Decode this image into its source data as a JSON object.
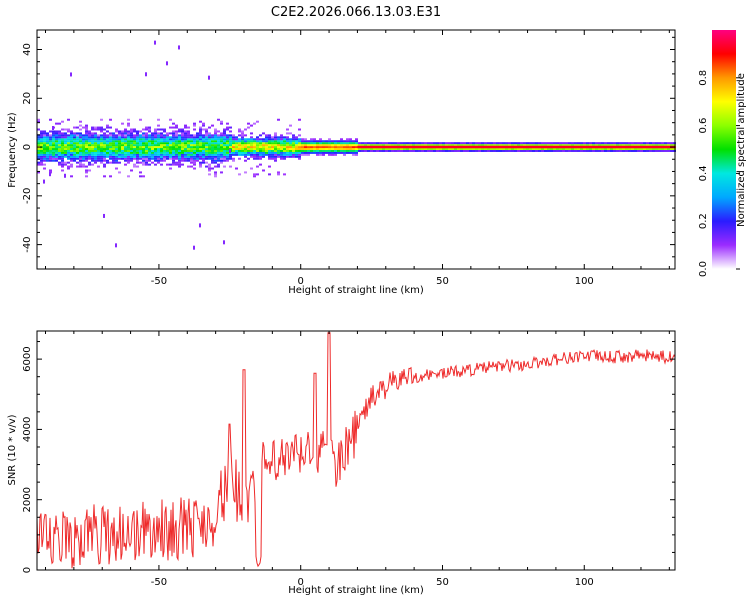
{
  "title": "C2E2.2026.066.13.03.E31",
  "chart_data": [
    {
      "type": "heatmap",
      "xlabel": "Height of straight line (km)",
      "ylabel": "Frequency (Hz)",
      "xlim": [
        -93,
        132
      ],
      "ylim": [
        -50,
        48
      ],
      "xticks": [
        -50,
        0,
        50,
        100
      ],
      "xtick_labels": [
        "-50",
        "0",
        "50",
        "100"
      ],
      "yticks": [
        40,
        20,
        0,
        -20,
        -40
      ],
      "ytick_labels": [
        "40",
        "20",
        "0",
        "-20",
        "-40"
      ],
      "ridge_frequency_hz": 0,
      "colorbar": {
        "label": "Normalized spectral amplitude",
        "range": [
          0,
          1
        ],
        "ticks": [
          0.0,
          0.2,
          0.4,
          0.6,
          0.8
        ],
        "tick_labels": [
          "0.0",
          "0.2",
          "0.4",
          "0.6",
          "0.8"
        ]
      }
    },
    {
      "type": "line",
      "xlabel": "Height of straight line (km)",
      "ylabel": "SNR (10 * v/v)",
      "xlim": [
        -93,
        132
      ],
      "ylim": [
        0,
        6800
      ],
      "xticks": [
        -50,
        0,
        50,
        100
      ],
      "xtick_labels": [
        "-50",
        "0",
        "50",
        "100"
      ],
      "yticks": [
        0,
        2000,
        4000,
        6000
      ],
      "ytick_labels": [
        "0",
        "2000",
        "4000",
        "6000"
      ],
      "line_color": "#ee2a2a",
      "series": [
        {
          "name": "SNR",
          "x": [
            -93,
            -85,
            -75,
            -65,
            -55,
            -45,
            -35,
            -30,
            -25,
            -20,
            -15,
            -10,
            -5,
            0,
            5,
            8,
            10,
            12,
            15,
            18,
            20,
            25,
            30,
            35,
            40,
            50,
            60,
            70,
            80,
            90,
            100,
            110,
            120,
            132
          ],
          "y": [
            700,
            800,
            1000,
            1050,
            1100,
            1150,
            1300,
            1600,
            2600,
            1800,
            3000,
            3000,
            3150,
            3300,
            3400,
            3350,
            3550,
            2700,
            3500,
            3600,
            4100,
            4900,
            5200,
            5450,
            5500,
            5600,
            5700,
            5800,
            5850,
            6000,
            6100,
            6050,
            6100,
            6050
          ]
        }
      ],
      "spikes": [
        {
          "x": -20,
          "y": 5700
        },
        {
          "x": 10,
          "y": 6750
        },
        {
          "x": 5,
          "y": 5600
        },
        {
          "x": -25,
          "y": 4150
        }
      ]
    }
  ]
}
